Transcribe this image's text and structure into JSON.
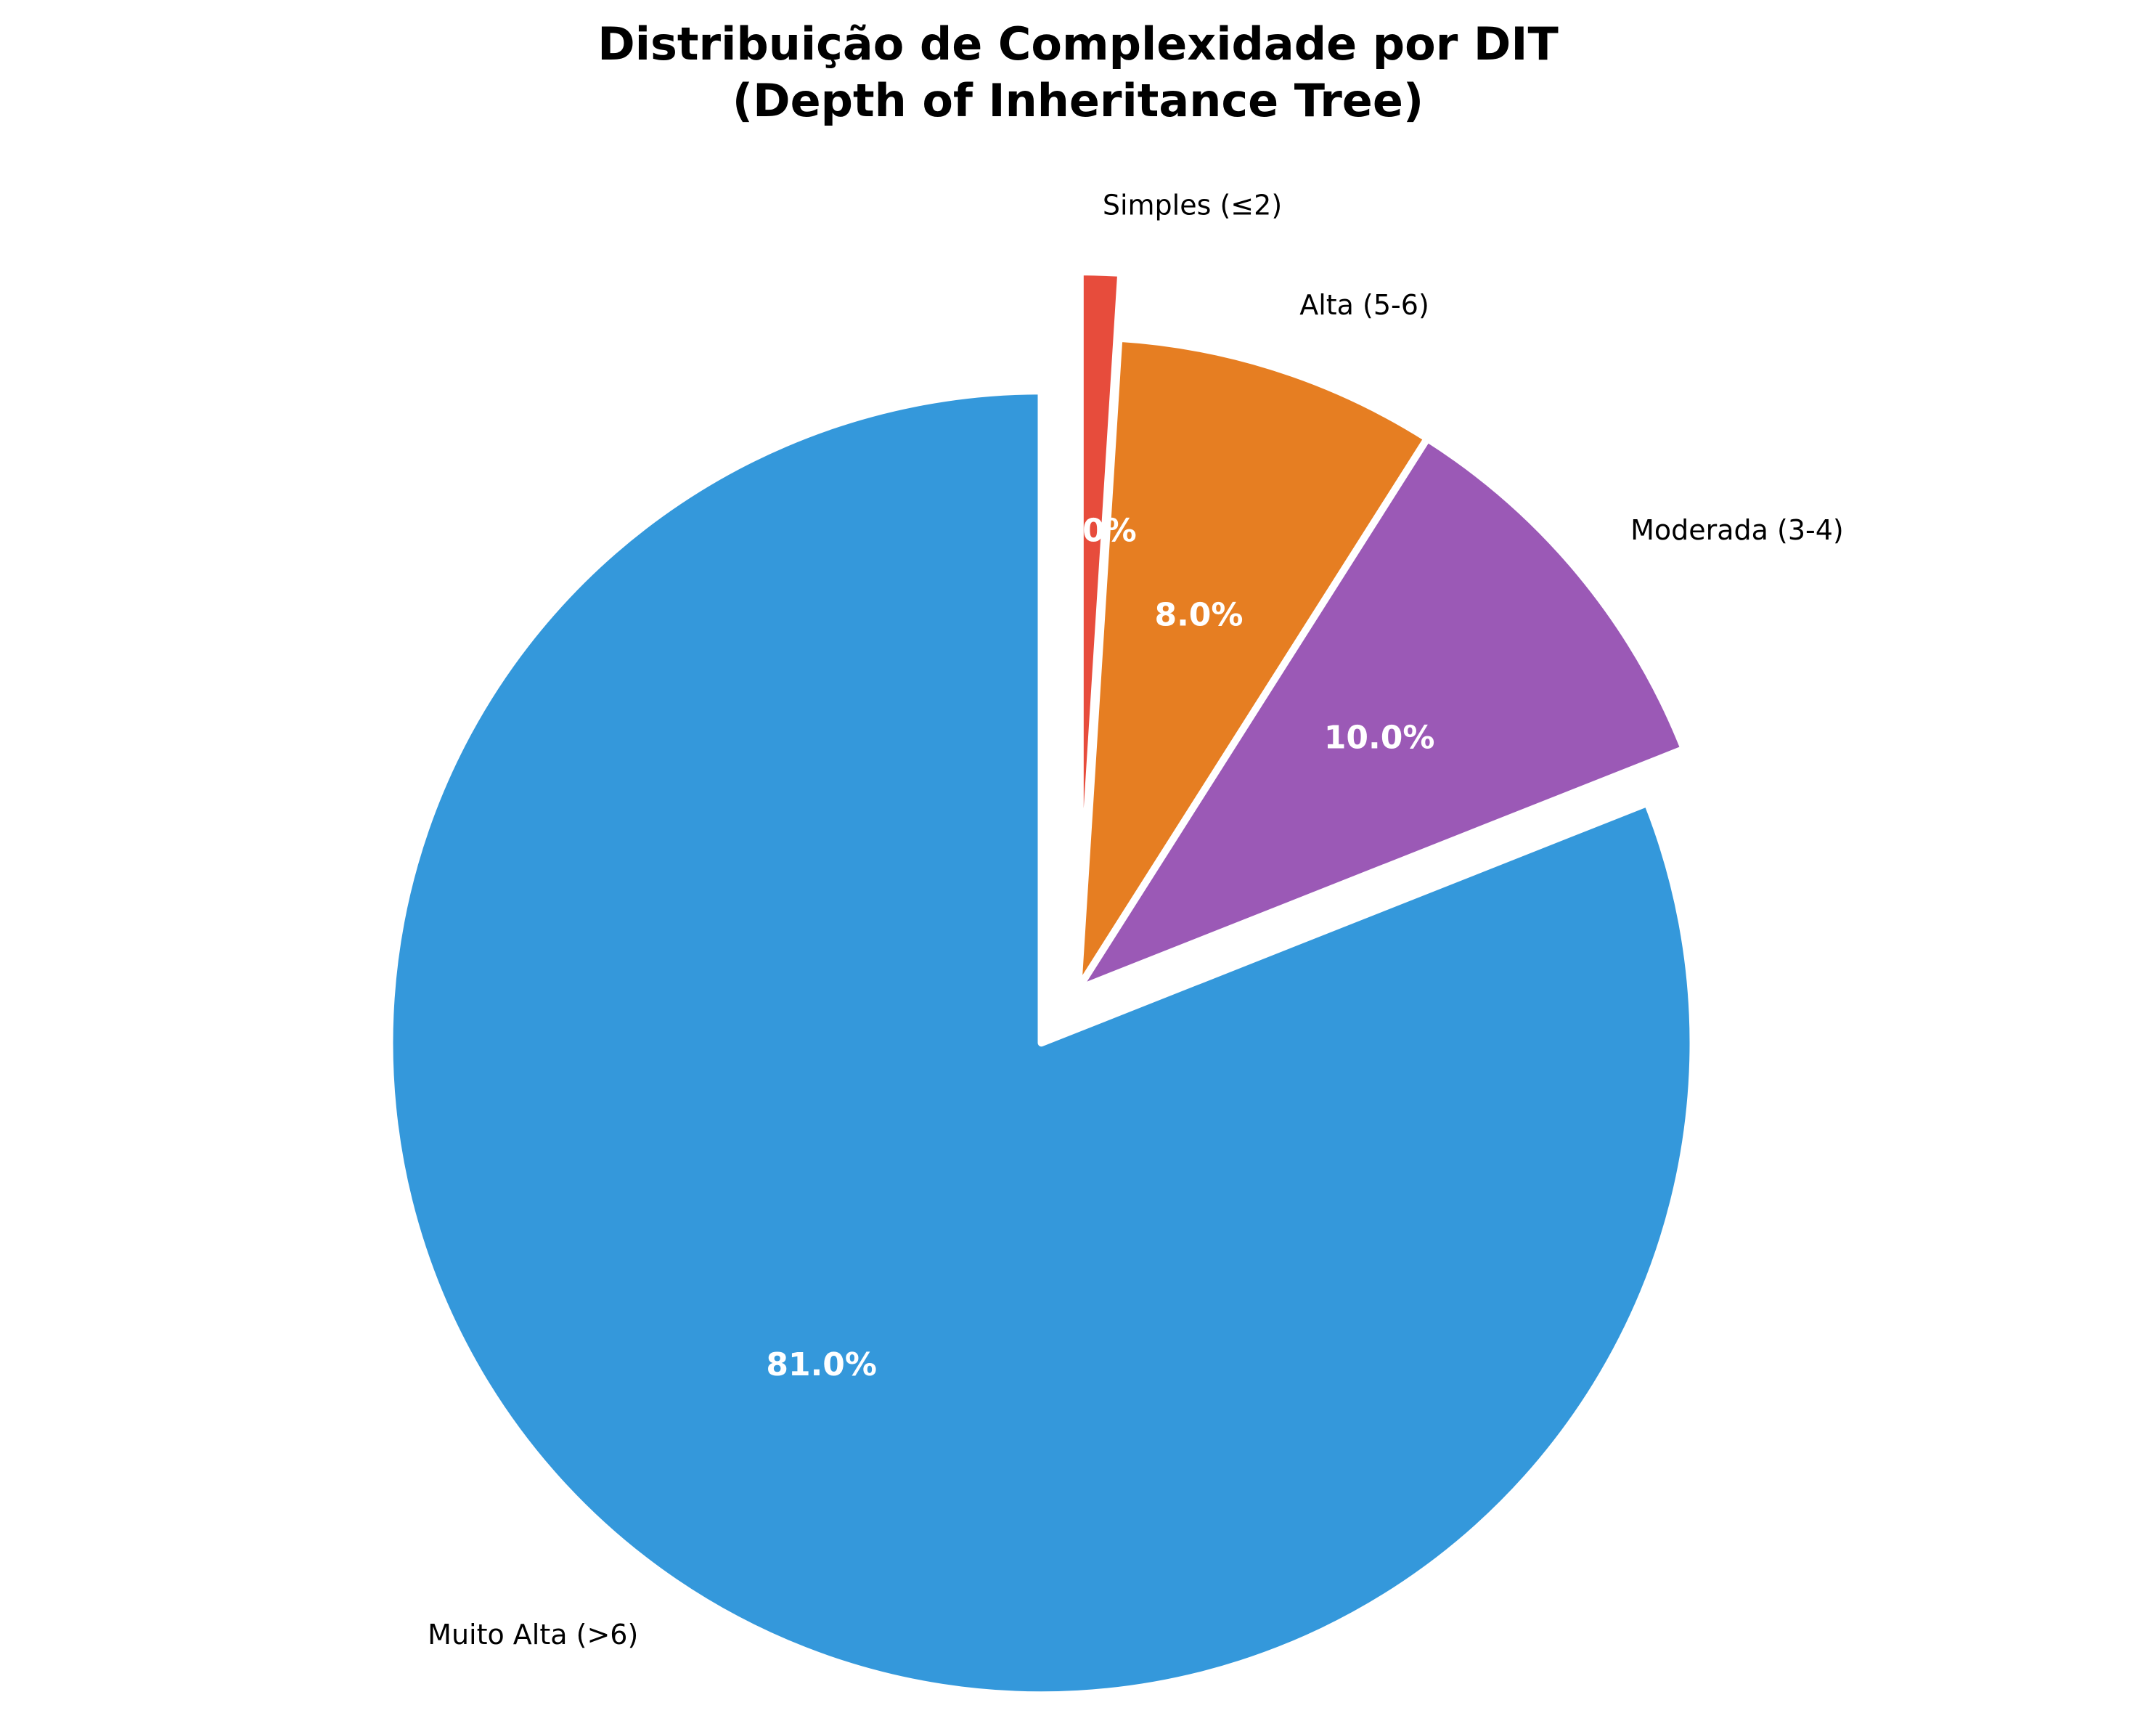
{
  "chart_data": {
    "type": "pie",
    "title": [
      "Distribuição de Complexidade por DIT",
      "(Depth of Inheritance Tree)"
    ],
    "start_angle_deg": 90,
    "direction": "clockwise",
    "slices": [
      {
        "label": "Simples (≤2)",
        "value": 1.0,
        "pct_label": "1.0%",
        "color": "#e74c3c",
        "exploded": true
      },
      {
        "label": "Alta (5-6)",
        "value": 8.0,
        "pct_label": "8.0%",
        "color": "#e67e22",
        "exploded": false
      },
      {
        "label": "Moderada (3-4)",
        "value": 10.0,
        "pct_label": "10.0%",
        "color": "#9b59b6",
        "exploded": false
      },
      {
        "label": "Muito Alta (>6)",
        "value": 81.0,
        "pct_label": "81.0%",
        "color": "#3498db",
        "exploded": true
      }
    ],
    "edge_color": "#ffffff"
  }
}
